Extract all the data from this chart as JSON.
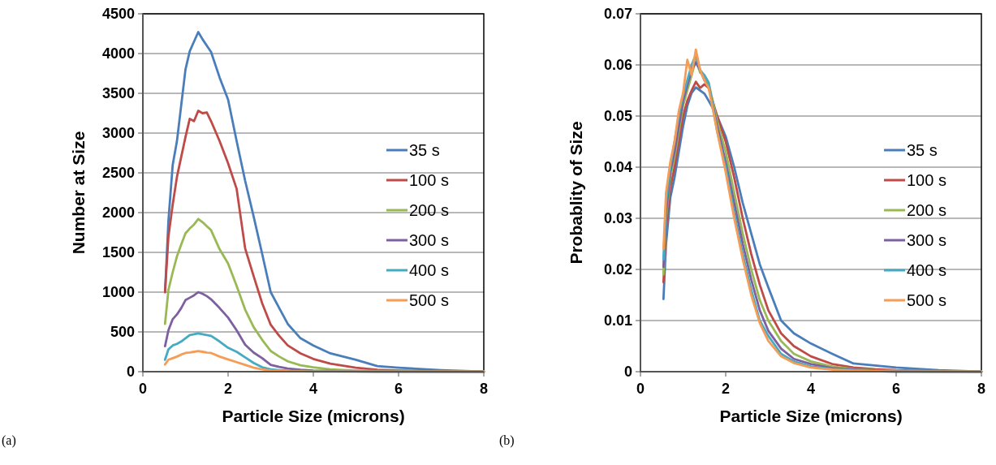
{
  "chart_data": [
    {
      "type": "line",
      "xlabel": "Particle Size (microns)",
      "ylabel": "Number at Size",
      "annotations": [
        "(a)"
      ],
      "x": [
        0.52,
        0.6,
        0.7,
        0.8,
        0.9,
        1.0,
        1.1,
        1.2,
        1.3,
        1.4,
        1.5,
        1.6,
        1.8,
        2.0,
        2.2,
        2.4,
        2.6,
        2.8,
        3.0,
        3.2,
        3.4,
        3.7,
        4.0,
        4.4,
        5.0,
        5.5,
        6.0,
        7.0,
        8.0
      ],
      "xlim": [
        0,
        8
      ],
      "xticks": [
        0,
        2,
        4,
        6,
        8
      ],
      "ylim": [
        0,
        4500
      ],
      "yticks": [
        0,
        500,
        1000,
        1500,
        2000,
        2500,
        3000,
        3500,
        4000,
        4500
      ],
      "grid": "y",
      "legend": "right",
      "line_style": "solid",
      "series": [
        {
          "name": "35 s",
          "color": "#4a7ebb",
          "values": [
            1000,
            1900,
            2600,
            2900,
            3350,
            3800,
            4030,
            4150,
            4270,
            4180,
            4100,
            4020,
            3700,
            3420,
            2900,
            2400,
            1950,
            1480,
            1000,
            800,
            600,
            420,
            330,
            230,
            150,
            70,
            50,
            20,
            0
          ]
        },
        {
          "name": "100 s",
          "color": "#be4b48",
          "values": [
            1000,
            1700,
            2100,
            2450,
            2700,
            2950,
            3180,
            3150,
            3280,
            3250,
            3260,
            3150,
            2900,
            2620,
            2300,
            1550,
            1200,
            860,
            590,
            450,
            330,
            230,
            160,
            100,
            50,
            25,
            15,
            5,
            0
          ]
        },
        {
          "name": "200 s",
          "color": "#98b954",
          "values": [
            600,
            1030,
            1250,
            1450,
            1600,
            1740,
            1800,
            1850,
            1920,
            1880,
            1830,
            1780,
            1540,
            1360,
            1080,
            780,
            560,
            400,
            260,
            190,
            130,
            80,
            55,
            30,
            15,
            8,
            5,
            2,
            0
          ]
        },
        {
          "name": "300 s",
          "color": "#7d60a0",
          "values": [
            320,
            520,
            660,
            720,
            800,
            900,
            930,
            960,
            1000,
            980,
            950,
            910,
            800,
            680,
            520,
            340,
            240,
            170,
            85,
            60,
            40,
            25,
            15,
            8,
            4,
            2,
            1,
            0,
            0
          ]
        },
        {
          "name": "400 s",
          "color": "#46aac5",
          "values": [
            150,
            280,
            330,
            350,
            380,
            420,
            460,
            470,
            480,
            470,
            460,
            450,
            380,
            300,
            250,
            180,
            110,
            55,
            30,
            20,
            12,
            8,
            5,
            3,
            null,
            null,
            0,
            0,
            0
          ]
        },
        {
          "name": "500 s",
          "color": "#f59d56",
          "values": [
            90,
            150,
            170,
            190,
            215,
            235,
            240,
            250,
            260,
            250,
            240,
            235,
            190,
            155,
            120,
            85,
            50,
            30,
            15,
            10,
            6,
            4,
            2,
            1,
            1,
            0,
            0,
            0,
            0
          ]
        }
      ]
    },
    {
      "type": "line",
      "xlabel": "Particle Size (microns)",
      "ylabel": "Probablity of Size",
      "annotations": [
        "(b)"
      ],
      "x": [
        0.54,
        0.6,
        0.7,
        0.8,
        0.9,
        1.0,
        1.1,
        1.2,
        1.3,
        1.4,
        1.5,
        1.6,
        1.8,
        2.0,
        2.2,
        2.4,
        2.6,
        2.8,
        3.0,
        3.3,
        3.6,
        4.0,
        4.5,
        5.0,
        5.5,
        6.0,
        7.0,
        8.0
      ],
      "xlim": [
        0,
        8
      ],
      "xticks": [
        0,
        2,
        4,
        6,
        8
      ],
      "ylim": [
        0,
        0.07
      ],
      "yticks": [
        0,
        0.01,
        0.02,
        0.03,
        0.04,
        0.05,
        0.06,
        0.07
      ],
      "grid": "y",
      "legend": "right",
      "line_style": "solid",
      "series": [
        {
          "name": "35 s",
          "color": "#4a7ebb",
          "values": [
            0.0142,
            0.025,
            0.034,
            0.038,
            0.043,
            0.048,
            0.052,
            0.0545,
            0.0556,
            0.055,
            0.0544,
            0.053,
            0.05,
            0.046,
            0.04,
            0.033,
            0.027,
            0.021,
            0.0165,
            0.01,
            0.0075,
            0.0055,
            0.0035,
            0.0016,
            0.0012,
            0.0008,
            0.0003,
            0
          ]
        },
        {
          "name": "100 s",
          "color": "#be4b48",
          "values": [
            0.0175,
            0.028,
            0.036,
            0.04,
            0.045,
            0.05,
            0.053,
            0.055,
            0.0567,
            0.0555,
            0.0562,
            0.0555,
            0.05,
            0.045,
            0.038,
            0.03,
            0.023,
            0.017,
            0.012,
            0.0075,
            0.005,
            0.003,
            0.0015,
            0.0008,
            0.0005,
            0.0003,
            0.0001,
            0
          ]
        },
        {
          "name": "200 s",
          "color": "#98b954",
          "values": [
            0.019,
            0.03,
            0.038,
            0.042,
            0.047,
            0.052,
            0.055,
            0.058,
            0.061,
            0.0585,
            0.058,
            0.0565,
            0.049,
            0.043,
            0.035,
            0.027,
            0.02,
            0.014,
            0.01,
            0.006,
            0.0035,
            0.002,
            0.001,
            0.0005,
            0.0003,
            0.0002,
            0.0001,
            0
          ]
        },
        {
          "name": "300 s",
          "color": "#7d60a0",
          "values": [
            0.0205,
            0.031,
            0.039,
            0.043,
            0.048,
            0.053,
            0.056,
            0.059,
            0.0605,
            0.059,
            0.057,
            0.056,
            0.048,
            0.041,
            0.033,
            0.025,
            0.018,
            0.012,
            0.008,
            0.0045,
            0.0025,
            0.0015,
            0.0007,
            0.0004,
            0.0002,
            0.0001,
            0,
            0
          ]
        },
        {
          "name": "400 s",
          "color": "#46aac5",
          "values": [
            0.022,
            0.033,
            0.04,
            0.045,
            0.05,
            0.054,
            0.057,
            0.06,
            0.062,
            0.059,
            0.058,
            0.0565,
            0.047,
            0.04,
            0.031,
            0.023,
            0.016,
            0.01,
            0.007,
            0.0035,
            0.002,
            0.001,
            0.0005,
            0.0003,
            0.0001,
            0,
            0,
            0
          ]
        },
        {
          "name": "500 s",
          "color": "#f59d56",
          "values": [
            0.024,
            0.035,
            0.041,
            0.045,
            0.051,
            0.0545,
            0.061,
            0.058,
            0.063,
            0.059,
            0.057,
            0.0555,
            0.047,
            0.039,
            0.03,
            0.022,
            0.015,
            0.0095,
            0.006,
            0.003,
            0.0017,
            0.0008,
            0.0004,
            0.0002,
            0.0001,
            0,
            0,
            0
          ]
        }
      ]
    }
  ]
}
